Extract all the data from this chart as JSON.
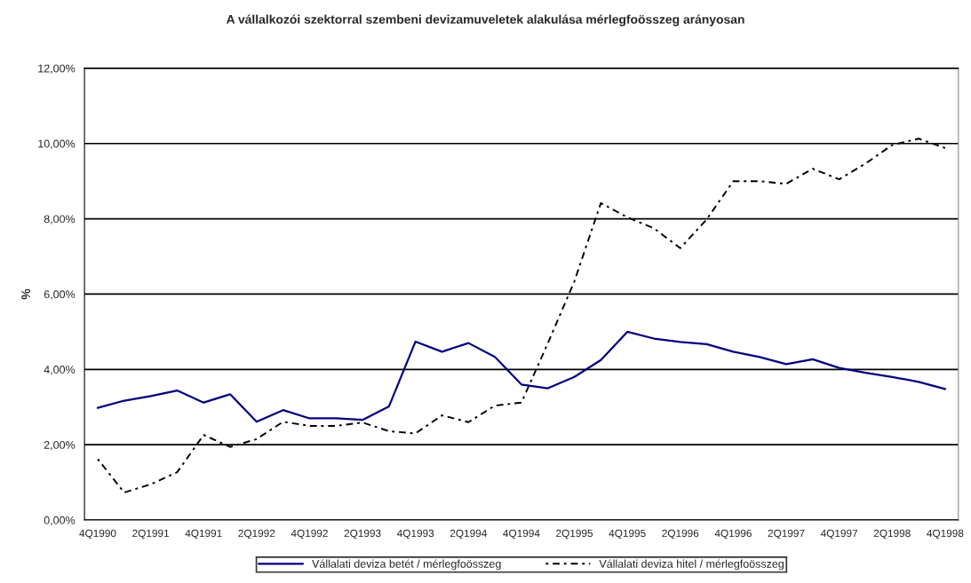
{
  "chart_data": {
    "type": "line",
    "title": "A vállalkozói szektorral szembeni devizamuveletek alakulása mérlegfoösszeg arányosan",
    "ylabel": "%",
    "categories": [
      "4Q1990",
      null,
      "2Q1991",
      null,
      "4Q1991",
      null,
      "2Q1992",
      null,
      "4Q1992",
      null,
      "2Q1993",
      null,
      "4Q1993",
      null,
      "2Q1994",
      null,
      "4Q1994",
      null,
      "2Q1995",
      null,
      "4Q1995",
      null,
      "2Q1996",
      null,
      "4Q1996",
      null,
      "2Q1997",
      null,
      "4Q1997",
      null,
      "2Q1998",
      null,
      "4Q1998"
    ],
    "series": [
      {
        "name": "Vállalati deviza betét / mérlegfoösszeg",
        "color": "#000080",
        "line_style": "solid",
        "values": [
          2.98,
          3.17,
          3.29,
          3.44,
          3.12,
          3.34,
          2.61,
          2.92,
          2.7,
          2.7,
          2.66,
          3.02,
          4.74,
          4.47,
          4.7,
          4.33,
          3.6,
          3.5,
          3.8,
          4.25,
          5.0,
          4.82,
          4.73,
          4.67,
          4.47,
          4.33,
          4.14,
          4.27,
          4.04,
          3.91,
          3.8,
          3.67,
          3.48
        ]
      },
      {
        "name": "Vállalati deviza hitel / mérlegfoösszeg",
        "color": "#000000",
        "line_style": "dotted",
        "values": [
          1.62,
          0.73,
          0.95,
          1.27,
          2.26,
          1.94,
          2.15,
          2.61,
          2.5,
          2.5,
          2.59,
          2.36,
          2.3,
          2.78,
          2.6,
          3.04,
          3.12,
          4.7,
          6.34,
          8.42,
          8.04,
          7.75,
          7.22,
          7.99,
          9.0,
          9.0,
          8.93,
          9.33,
          9.05,
          9.47,
          9.96,
          10.13,
          9.88
        ]
      }
    ],
    "ylim": [
      0,
      12
    ],
    "yticks": [
      {
        "value": 0,
        "label": "0,00%"
      },
      {
        "value": 2,
        "label": "2,00%"
      },
      {
        "value": 4,
        "label": "4,00%"
      },
      {
        "value": 6,
        "label": "6,00%"
      },
      {
        "value": 8,
        "label": "8,00%"
      },
      {
        "value": 10,
        "label": "10,00%"
      },
      {
        "value": 12,
        "label": "12,00%"
      }
    ],
    "grid": "y",
    "legend": "bottom",
    "marker": "none"
  }
}
